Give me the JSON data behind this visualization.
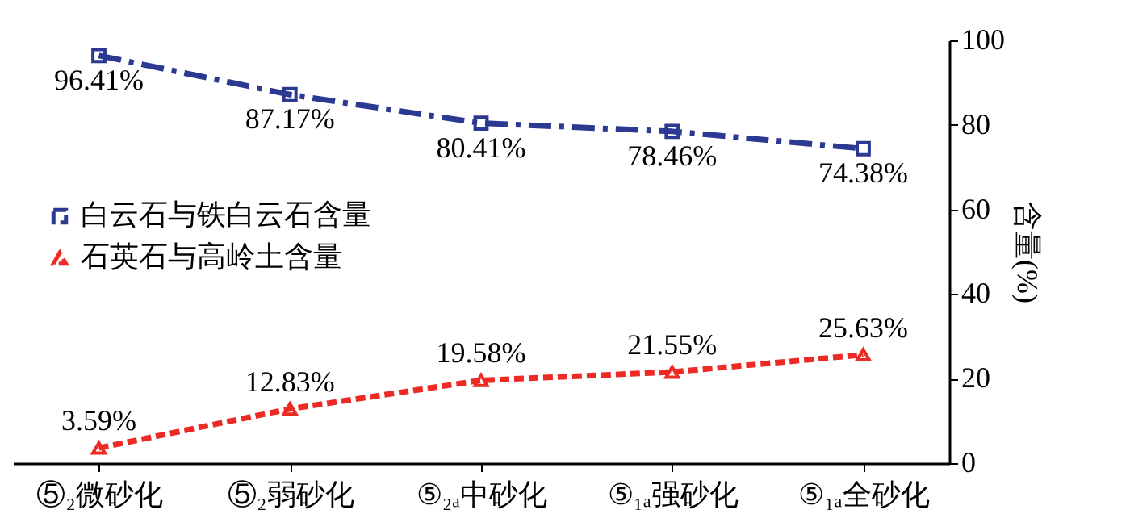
{
  "chart_data": {
    "type": "line",
    "categories": [
      "⑤₂微砂化",
      "⑤₂弱砂化",
      "⑤₂ₐ中砂化",
      "⑤₁ₐ强砂化",
      "⑤₁ₐ全砂化"
    ],
    "series": [
      {
        "name": "白云石与铁白云石含量",
        "color": "#2b3990",
        "values": [
          96.41,
          87.17,
          80.41,
          78.46,
          74.38
        ],
        "value_labels": [
          "96.41%",
          "87.17%",
          "80.41%",
          "78.46%",
          "74.38%"
        ],
        "marker": "square",
        "line_style": "dashed"
      },
      {
        "name": "石英石与高岭土含量",
        "color": "#ee2a24",
        "values": [
          3.59,
          12.83,
          19.58,
          21.55,
          25.63
        ],
        "value_labels": [
          "3.59%",
          "12.83%",
          "19.58%",
          "21.55%",
          "25.63%"
        ],
        "marker": "triangle",
        "line_style": "dotted"
      }
    ],
    "ylabel": "含量(%)",
    "ylim": [
      0,
      100
    ],
    "yticks": [
      0,
      20,
      40,
      60,
      80,
      100
    ],
    "legend": "left",
    "grid": false
  }
}
